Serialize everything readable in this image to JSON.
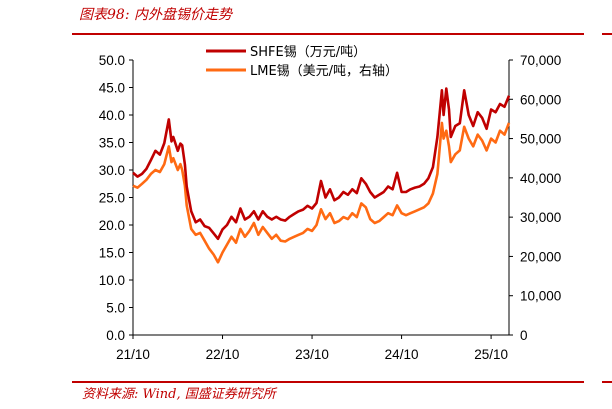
{
  "figure": {
    "title": "图表98: 内外盘锡价走势",
    "source": "资料来源: Wind, 国盛证券研究所"
  },
  "colors": {
    "accent": "#c00000",
    "shfe": "#c00000",
    "lme": "#ff6a13"
  },
  "chart_data": {
    "type": "line",
    "x_ticks": [
      "21/10",
      "22/10",
      "23/10",
      "24/10",
      "25/10"
    ],
    "y_left_ticks": [
      "50.0",
      "45.0",
      "40.0",
      "35.0",
      "30.0",
      "25.0",
      "20.0",
      "15.0",
      "10.0",
      "5.0",
      "0.0"
    ],
    "y_right_ticks": [
      "70,000",
      "60,000",
      "50,000",
      "40,000",
      "30,000",
      "20,000",
      "10,000",
      "0"
    ],
    "ylim_left": [
      0,
      50
    ],
    "ylim_right": [
      0,
      70000
    ],
    "xlim": [
      2021.75,
      2025.95
    ],
    "grid": false,
    "legend_position": "top-center",
    "series": [
      {
        "name": "SHFE锡（万元/吨）",
        "axis": "left",
        "color": "#c00000",
        "x": [
          2021.75,
          2021.8,
          2021.85,
          2021.9,
          2021.95,
          2022.0,
          2022.05,
          2022.1,
          2022.15,
          2022.18,
          2022.2,
          2022.25,
          2022.28,
          2022.3,
          2022.33,
          2022.35,
          2022.4,
          2022.45,
          2022.5,
          2022.55,
          2022.6,
          2022.65,
          2022.7,
          2022.75,
          2022.8,
          2022.85,
          2022.9,
          2022.95,
          2023.0,
          2023.05,
          2023.1,
          2023.15,
          2023.2,
          2023.25,
          2023.3,
          2023.35,
          2023.4,
          2023.45,
          2023.5,
          2023.55,
          2023.6,
          2023.65,
          2023.7,
          2023.75,
          2023.8,
          2023.85,
          2023.9,
          2023.95,
          2024.0,
          2024.05,
          2024.1,
          2024.15,
          2024.2,
          2024.25,
          2024.3,
          2024.35,
          2024.4,
          2024.45,
          2024.5,
          2024.55,
          2024.6,
          2024.65,
          2024.7,
          2024.75,
          2024.8,
          2024.85,
          2024.9,
          2024.95,
          2025.0,
          2025.05,
          2025.1,
          2025.15,
          2025.2,
          2025.22,
          2025.25,
          2025.28,
          2025.3,
          2025.35,
          2025.4,
          2025.45,
          2025.5,
          2025.55,
          2025.6,
          2025.65,
          2025.7,
          2025.75,
          2025.8,
          2025.85,
          2025.9,
          2025.95
        ],
        "values": [
          29.5,
          28.8,
          29.3,
          30.2,
          31.8,
          33.5,
          32.8,
          34.9,
          39.2,
          35.2,
          36.0,
          33.5,
          34.8,
          34.5,
          31.0,
          27.0,
          22.5,
          20.5,
          21.0,
          19.8,
          19.5,
          18.5,
          17.5,
          19.2,
          20.0,
          21.5,
          20.5,
          23.0,
          21.0,
          21.5,
          22.5,
          21.0,
          22.5,
          21.5,
          21.0,
          21.5,
          21.0,
          20.8,
          21.5,
          22.0,
          22.5,
          22.8,
          23.5,
          23.0,
          24.0,
          28.0,
          25.0,
          26.5,
          24.5,
          25.0,
          26.0,
          25.5,
          26.5,
          25.8,
          28.5,
          27.5,
          26.0,
          25.0,
          25.5,
          26.0,
          27.0,
          26.5,
          29.5,
          26.0,
          26.0,
          26.5,
          26.8,
          27.0,
          27.5,
          28.5,
          30.5,
          36.0,
          44.5,
          40.0,
          44.8,
          41.0,
          36.0,
          38.0,
          38.5,
          44.5,
          40.0,
          38.0,
          40.5,
          39.5,
          37.5,
          41.0,
          40.5,
          42.0,
          41.5,
          43.5
        ]
      },
      {
        "name": "LME锡（美元/吨，右轴）",
        "axis": "right",
        "color": "#ff6a13",
        "x": [
          2021.75,
          2021.8,
          2021.85,
          2021.9,
          2021.95,
          2022.0,
          2022.05,
          2022.1,
          2022.15,
          2022.18,
          2022.2,
          2022.25,
          2022.28,
          2022.3,
          2022.33,
          2022.35,
          2022.4,
          2022.45,
          2022.5,
          2022.55,
          2022.6,
          2022.65,
          2022.7,
          2022.75,
          2022.8,
          2022.85,
          2022.9,
          2022.95,
          2023.0,
          2023.05,
          2023.1,
          2023.15,
          2023.2,
          2023.25,
          2023.3,
          2023.35,
          2023.4,
          2023.45,
          2023.5,
          2023.55,
          2023.6,
          2023.65,
          2023.7,
          2023.75,
          2023.8,
          2023.85,
          2023.9,
          2023.95,
          2024.0,
          2024.05,
          2024.1,
          2024.15,
          2024.2,
          2024.25,
          2024.3,
          2024.35,
          2024.4,
          2024.45,
          2024.5,
          2024.55,
          2024.6,
          2024.65,
          2024.7,
          2024.75,
          2024.8,
          2024.85,
          2024.9,
          2024.95,
          2025.0,
          2025.05,
          2025.1,
          2025.15,
          2025.2,
          2025.22,
          2025.25,
          2025.28,
          2025.3,
          2025.35,
          2025.4,
          2025.45,
          2025.5,
          2025.55,
          2025.6,
          2025.65,
          2025.7,
          2025.75,
          2025.8,
          2025.85,
          2025.9,
          2025.95
        ],
        "values": [
          38000,
          37500,
          38500,
          39500,
          41000,
          42000,
          41500,
          43500,
          48000,
          44000,
          45000,
          42000,
          43500,
          42000,
          38000,
          33000,
          27000,
          25500,
          26000,
          24000,
          22000,
          20500,
          18500,
          21000,
          23000,
          25000,
          23500,
          27000,
          25000,
          26500,
          28500,
          25500,
          27500,
          26000,
          24500,
          25500,
          24000,
          23800,
          24500,
          25000,
          25500,
          26000,
          27000,
          26500,
          28000,
          32000,
          29500,
          31000,
          28500,
          29000,
          30000,
          29500,
          31000,
          30000,
          33500,
          32500,
          29500,
          28500,
          29000,
          30000,
          31000,
          30500,
          33000,
          31000,
          30500,
          31000,
          31500,
          32000,
          32500,
          33500,
          36000,
          41000,
          54000,
          50000,
          52000,
          48000,
          44000,
          46000,
          47000,
          53000,
          50000,
          48000,
          51000,
          49500,
          47000,
          50000,
          49000,
          52000,
          51000,
          54000
        ]
      }
    ]
  }
}
